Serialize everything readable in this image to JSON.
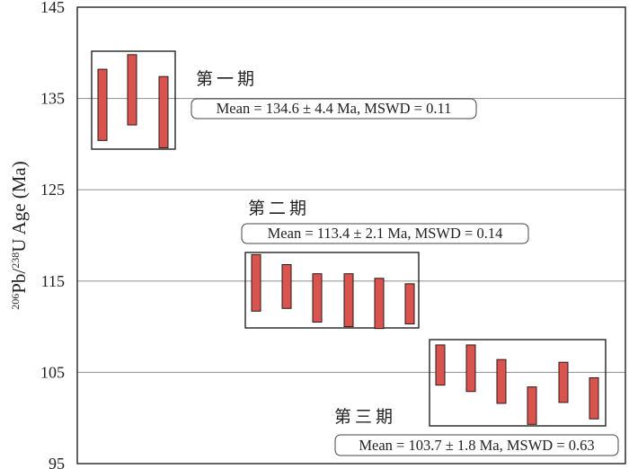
{
  "chart_data": {
    "type": "bar",
    "ylabel": {
      "pre": "",
      "sup1": "206",
      "mid": "Pb/",
      "sup2": "238",
      "post": "U  Age (Ma)"
    },
    "ylim": [
      95,
      145
    ],
    "yticks": [
      95,
      105,
      115,
      125,
      135,
      145
    ],
    "grid": true,
    "bar_color": "#d9534f",
    "groups": [
      {
        "label": "第一期",
        "mean_text": "Mean = 134.6 ± 4.4 Ma, MSWD = 0.11",
        "bars": [
          [
            130.4,
            138.2
          ],
          [
            132.1,
            139.8
          ],
          [
            129.6,
            137.4
          ]
        ]
      },
      {
        "label": "第二期",
        "mean_text": "Mean = 113.4 ± 2.1 Ma, MSWD = 0.14",
        "bars": [
          [
            111.7,
            117.9
          ],
          [
            112.0,
            116.8
          ],
          [
            110.5,
            115.8
          ],
          [
            110.0,
            115.8
          ],
          [
            109.8,
            115.3
          ],
          [
            110.3,
            114.7
          ]
        ]
      },
      {
        "label": "第三期",
        "mean_text": "Mean = 103.7 ± 1.8 Ma, MSWD = 0.63",
        "bars": [
          [
            103.6,
            108.0
          ],
          [
            102.9,
            108.0
          ],
          [
            101.6,
            106.4
          ],
          [
            99.3,
            103.4
          ],
          [
            101.7,
            106.1
          ],
          [
            99.9,
            104.4
          ]
        ]
      }
    ]
  }
}
